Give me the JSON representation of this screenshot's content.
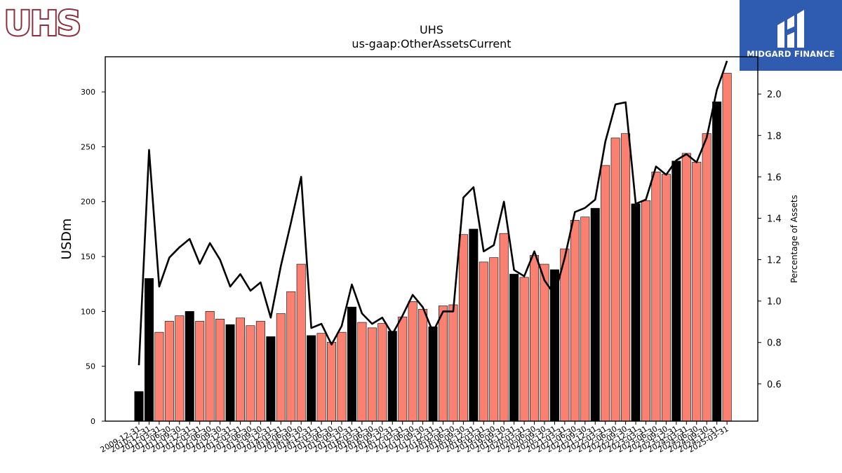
{
  "header": {
    "left_logo_text": "UHS",
    "right_logo_text": "MIDGARD FINANCE"
  },
  "chart_data": {
    "type": "bar",
    "title": "UHS",
    "subtitle": "us-gaap:OtherAssetsCurrent",
    "ylabel": "USDm",
    "y2label": "Percentage of Assets",
    "ylim": [
      0,
      332
    ],
    "y2lim": [
      0.42,
      2.18
    ],
    "yticks": [
      0,
      50,
      100,
      150,
      200,
      250,
      300
    ],
    "y2ticks": [
      0.6,
      0.8,
      1.0,
      1.2,
      1.4,
      1.6,
      1.8,
      2.0
    ],
    "colors": {
      "annual_bar": "#000000",
      "quarter_bar": "#fa8072",
      "line": "#000000"
    },
    "categories": [
      "2009-12-31",
      "2010-12-31",
      "2011-03-31",
      "2011-06-30",
      "2011-09-30",
      "2011-12-31",
      "2012-03-31",
      "2012-06-30",
      "2012-09-30",
      "2012-12-31",
      "2013-03-31",
      "2013-06-30",
      "2013-09-30",
      "2013-12-31",
      "2014-03-31",
      "2014-06-30",
      "2014-09-30",
      "2014-12-31",
      "2015-03-31",
      "2015-06-30",
      "2015-09-30",
      "2015-12-31",
      "2016-03-31",
      "2016-06-30",
      "2016-09-30",
      "2016-12-31",
      "2017-03-31",
      "2017-06-30",
      "2017-09-30",
      "2017-12-31",
      "2018-03-31",
      "2018-06-30",
      "2018-09-30",
      "2018-12-31",
      "2019-03-31",
      "2019-06-30",
      "2019-09-30",
      "2019-12-31",
      "2020-03-31",
      "2020-06-30",
      "2020-09-30",
      "2020-12-31",
      "2021-03-31",
      "2021-06-30",
      "2021-09-30",
      "2021-12-31",
      "2022-03-31",
      "2022-06-30",
      "2022-09-30",
      "2022-12-31",
      "2023-03-31",
      "2023-06-30",
      "2023-09-30",
      "2023-12-31",
      "2024-03-31",
      "2024-06-30",
      "2024-09-30",
      "2024-12-31",
      "2025-03-31"
    ],
    "series": [
      {
        "type": "bar",
        "values": [
          27,
          130,
          81,
          91,
          96,
          100,
          91,
          100,
          93,
          88,
          94,
          87,
          91,
          77,
          98,
          118,
          143,
          78,
          80,
          72,
          81,
          104,
          90,
          85,
          89,
          82,
          95,
          109,
          102,
          86,
          105,
          106,
          170,
          175,
          145,
          149,
          171,
          134,
          131,
          151,
          143,
          138,
          157,
          183,
          186,
          194,
          233,
          258,
          262,
          198,
          201,
          227,
          225,
          237,
          244,
          236,
          262,
          291,
          317
        ],
        "annual_flags": [
          1,
          1,
          0,
          0,
          0,
          1,
          0,
          0,
          0,
          1,
          0,
          0,
          0,
          1,
          0,
          0,
          0,
          1,
          0,
          0,
          0,
          1,
          0,
          0,
          0,
          1,
          0,
          0,
          0,
          1,
          0,
          0,
          0,
          1,
          0,
          0,
          0,
          1,
          0,
          0,
          0,
          1,
          0,
          0,
          0,
          1,
          0,
          0,
          0,
          1,
          0,
          0,
          0,
          1,
          0,
          0,
          0,
          1,
          0
        ]
      },
      {
        "type": "line",
        "axis": "right",
        "values": [
          0.69,
          1.73,
          1.07,
          1.21,
          1.26,
          1.3,
          1.18,
          1.28,
          1.2,
          1.07,
          1.13,
          1.05,
          1.09,
          0.92,
          1.17,
          1.38,
          1.6,
          0.87,
          0.89,
          0.79,
          0.88,
          1.08,
          0.94,
          0.89,
          0.92,
          0.84,
          0.93,
          1.03,
          0.97,
          0.85,
          0.95,
          0.95,
          1.5,
          1.55,
          1.24,
          1.27,
          1.48,
          1.15,
          1.12,
          1.24,
          1.1,
          1.03,
          1.21,
          1.43,
          1.45,
          1.49,
          1.77,
          1.95,
          1.96,
          1.47,
          1.49,
          1.65,
          1.61,
          1.68,
          1.71,
          1.67,
          1.79,
          2.02,
          2.16
        ]
      }
    ]
  }
}
